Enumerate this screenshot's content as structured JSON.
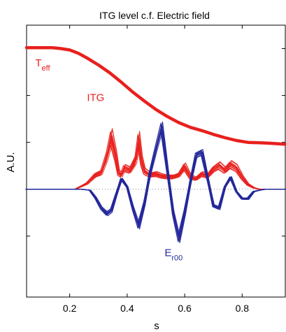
{
  "chart_data": {
    "type": "line",
    "title": "ITG level c.f. Electric field",
    "xlabel": "s",
    "ylabel": "A.U.",
    "xlim": [
      0.05,
      0.95
    ],
    "ylim": [
      -2.3,
      3.5
    ],
    "x_ticks": [
      "0.2",
      "0.4",
      "0.6",
      "0.8"
    ],
    "y_ticks": [
      -1,
      0,
      1,
      2,
      3
    ],
    "grid": false,
    "zero_line": "dotted",
    "series": [
      {
        "name": "T_eff",
        "color": "#e8201d",
        "x": [
          0.05,
          0.1,
          0.14,
          0.17,
          0.2,
          0.23,
          0.26,
          0.3,
          0.34,
          0.38,
          0.42,
          0.46,
          0.5,
          0.54,
          0.58,
          0.62,
          0.66,
          0.7,
          0.74,
          0.78,
          0.82,
          0.86,
          0.9,
          0.95
        ],
        "values": [
          3.02,
          3.02,
          3.02,
          3.0,
          2.97,
          2.9,
          2.8,
          2.65,
          2.48,
          2.28,
          2.07,
          1.88,
          1.7,
          1.55,
          1.42,
          1.32,
          1.25,
          1.17,
          1.1,
          1.04,
          1.0,
          0.99,
          0.98,
          0.96
        ]
      },
      {
        "name": "ITG",
        "color": "#e8201d",
        "x": [
          0.05,
          0.22,
          0.26,
          0.29,
          0.31,
          0.33,
          0.345,
          0.36,
          0.37,
          0.38,
          0.39,
          0.41,
          0.43,
          0.44,
          0.45,
          0.46,
          0.48,
          0.5,
          0.52,
          0.54,
          0.56,
          0.58,
          0.6,
          0.62,
          0.64,
          0.66,
          0.68,
          0.7,
          0.72,
          0.74,
          0.76,
          0.78,
          0.8,
          0.82,
          0.84,
          0.86,
          0.95
        ],
        "values": [
          0.0,
          0.0,
          0.12,
          0.3,
          0.35,
          0.7,
          1.1,
          0.7,
          0.35,
          0.3,
          0.45,
          0.4,
          0.62,
          1.05,
          0.6,
          0.38,
          0.3,
          0.32,
          0.28,
          0.26,
          0.26,
          0.3,
          0.48,
          0.26,
          0.22,
          0.32,
          0.28,
          0.42,
          0.5,
          0.4,
          0.52,
          0.45,
          0.25,
          0.1,
          0.03,
          0.0,
          0.0
        ]
      },
      {
        "name": "E_r00",
        "color": "#23279a",
        "x": [
          0.05,
          0.24,
          0.27,
          0.29,
          0.31,
          0.33,
          0.345,
          0.36,
          0.38,
          0.4,
          0.42,
          0.44,
          0.46,
          0.48,
          0.5,
          0.52,
          0.54,
          0.56,
          0.58,
          0.6,
          0.62,
          0.64,
          0.66,
          0.68,
          0.7,
          0.72,
          0.74,
          0.76,
          0.78,
          0.8,
          0.82,
          0.84,
          0.86,
          0.88,
          0.95
        ],
        "values": [
          0.0,
          0.0,
          -0.02,
          -0.18,
          -0.4,
          -0.52,
          -0.45,
          -0.15,
          0.22,
          0.05,
          -0.4,
          -0.78,
          -0.3,
          0.35,
          0.85,
          1.32,
          0.4,
          -0.5,
          -1.05,
          -0.5,
          0.15,
          0.72,
          0.78,
          0.22,
          -0.35,
          -0.4,
          0.05,
          0.25,
          -0.05,
          -0.2,
          -0.2,
          -0.05,
          -0.02,
          0.0,
          0.0
        ]
      }
    ],
    "annotations": [
      {
        "base": "T",
        "sub": "eff",
        "color": "#e8201d",
        "x": 0.08,
        "y": 2.62
      },
      {
        "base": "ITG",
        "sub": "",
        "color": "#e8201d",
        "x": 0.26,
        "y": 1.88
      },
      {
        "base": "E",
        "sub": "r00",
        "color": "#23279a",
        "x": 0.53,
        "y": -1.43
      }
    ]
  }
}
